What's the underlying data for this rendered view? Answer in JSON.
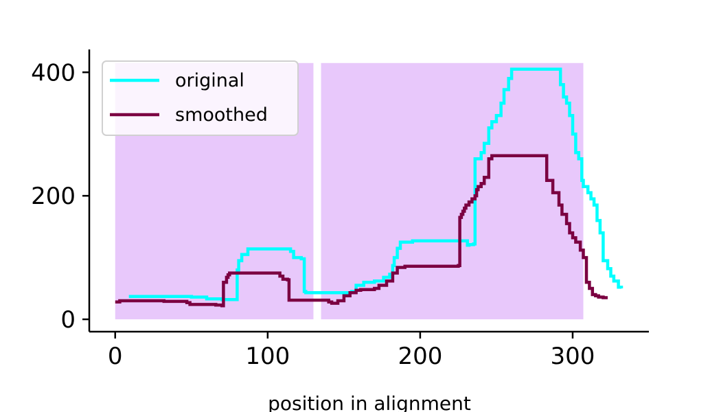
{
  "chart_data": {
    "type": "line",
    "xlabel": "position in alignment",
    "ylabel": "",
    "xlim": [
      -17,
      350
    ],
    "ylim": [
      -20,
      437
    ],
    "xticks": [
      0,
      100,
      200,
      300
    ],
    "yticks": [
      0,
      200,
      400
    ],
    "grid": false,
    "legend": {
      "placement": "top-left"
    },
    "colors": {
      "original": "#00ffff",
      "smoothed": "#7b0041",
      "shade": "#e8c8fb"
    },
    "shaded_regions": [
      {
        "x": [
          0,
          130
        ],
        "y": [
          0,
          415
        ]
      },
      {
        "x": [
          135,
          307
        ],
        "y": [
          0,
          415
        ]
      }
    ],
    "series": [
      {
        "name": "original",
        "x": [
          9,
          45,
          50,
          57,
          60,
          70,
          79,
          80,
          81,
          83,
          87,
          113,
          115,
          117,
          122,
          124,
          125,
          128,
          132,
          150,
          155,
          158,
          163,
          170,
          176,
          180,
          182,
          183,
          185,
          187,
          190,
          195,
          205,
          215,
          229,
          231,
          232,
          235,
          236,
          240,
          242,
          245,
          247,
          250,
          253,
          255,
          258,
          260,
          290,
          292,
          294,
          296,
          298,
          300,
          302,
          304,
          306,
          307,
          310,
          312,
          314,
          316,
          318,
          320,
          323,
          325,
          327,
          330,
          332
        ],
        "values": [
          37,
          37,
          36,
          36,
          33,
          32,
          32,
          80,
          95,
          105,
          114,
          114,
          110,
          100,
          98,
          45,
          43,
          43,
          43,
          43,
          45,
          55,
          60,
          62,
          68,
          73,
          87,
          100,
          115,
          125,
          125,
          127,
          127,
          127,
          127,
          120,
          121,
          122,
          260,
          270,
          285,
          310,
          320,
          330,
          350,
          372,
          390,
          405,
          405,
          380,
          360,
          350,
          330,
          300,
          270,
          260,
          225,
          215,
          205,
          195,
          185,
          160,
          140,
          95,
          82,
          70,
          62,
          52,
          50
        ]
      },
      {
        "name": "smoothed",
        "x": [
          0,
          3,
          28,
          32,
          41,
          47,
          49,
          60,
          66,
          70,
          71,
          73,
          74,
          75,
          77,
          106,
          108,
          110,
          113,
          114,
          116,
          133,
          140,
          142,
          146,
          150,
          154,
          158,
          161,
          170,
          173,
          178,
          182,
          185,
          190,
          200,
          225,
          226,
          227,
          228,
          229,
          230,
          232,
          234,
          236,
          237,
          238,
          240,
          242,
          245,
          247,
          250,
          270,
          280,
          283,
          287,
          291,
          293,
          296,
          298,
          300,
          302,
          305,
          307,
          309,
          311,
          313,
          315,
          317,
          320,
          323
        ],
        "values": [
          28,
          30,
          30,
          29,
          29,
          27,
          24,
          24,
          23,
          22,
          60,
          68,
          72,
          75,
          75,
          75,
          70,
          65,
          64,
          31,
          31,
          31,
          28,
          26,
          30,
          38,
          43,
          47,
          48,
          50,
          55,
          62,
          75,
          84,
          86,
          86,
          87,
          165,
          170,
          175,
          180,
          185,
          190,
          195,
          200,
          210,
          215,
          220,
          230,
          260,
          265,
          265,
          265,
          265,
          225,
          205,
          185,
          170,
          155,
          140,
          132,
          125,
          112,
          100,
          60,
          50,
          40,
          38,
          36,
          35,
          35
        ]
      }
    ]
  }
}
